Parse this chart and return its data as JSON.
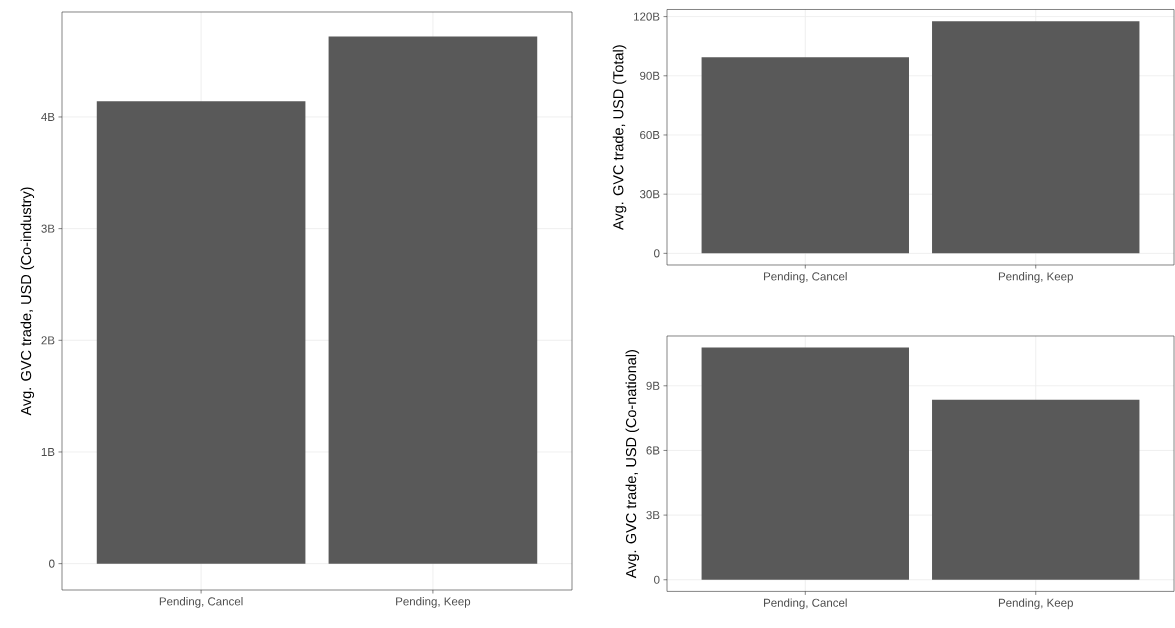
{
  "chart_data": [
    {
      "type": "bar",
      "ylabel": "Avg. GVC trade, USD (Co-industry)",
      "categories": [
        "Pending, Cancel",
        "Pending, Keep"
      ],
      "values": [
        4.14,
        4.72
      ],
      "color": "#595959",
      "ylim": [
        -0.236,
        4.94
      ],
      "yticks": [
        0,
        {
          "value": 1,
          "label": "1B"
        },
        {
          "value": 2,
          "label": "2B"
        },
        {
          "value": 3,
          "label": "3B"
        },
        {
          "value": 4,
          "label": "4B"
        }
      ],
      "grid": true
    },
    {
      "type": "bar",
      "ylabel": "Avg. GVC trade, USD (Total)",
      "categories": [
        "Pending, Cancel",
        "Pending, Keep"
      ],
      "values": [
        99.4,
        117.7
      ],
      "color": "#595959",
      "ylim": [
        -5.9,
        123.6
      ],
      "yticks": [
        0,
        {
          "value": 30,
          "label": "30B"
        },
        {
          "value": 60,
          "label": "60B"
        },
        {
          "value": 90,
          "label": "90B"
        },
        {
          "value": 120,
          "label": "120B"
        }
      ],
      "grid": true
    },
    {
      "type": "bar",
      "ylabel": "Avg. GVC trade, USD (Co-national)",
      "categories": [
        "Pending, Cancel",
        "Pending, Keep"
      ],
      "values": [
        10.78,
        8.35
      ],
      "color": "#595959",
      "ylim": [
        -0.54,
        11.31
      ],
      "yticks": [
        0,
        {
          "value": 3,
          "label": "3B"
        },
        {
          "value": 6,
          "label": "6B"
        },
        {
          "value": 9,
          "label": "9B"
        }
      ],
      "grid": true
    }
  ]
}
